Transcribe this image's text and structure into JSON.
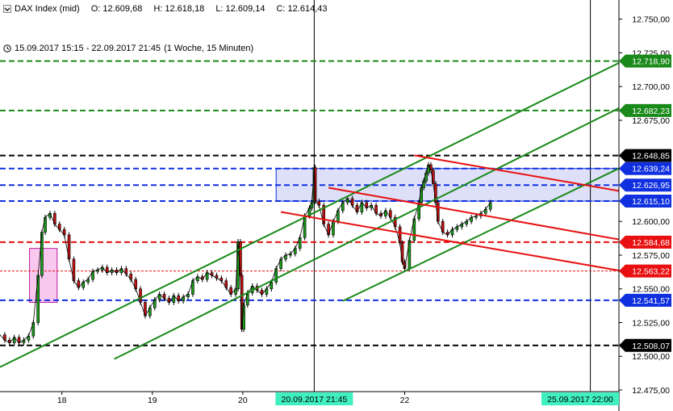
{
  "header": {
    "instrument": "DAX Index (mid)",
    "open": "O: 12.609,68",
    "high": "H: 12.618,18",
    "low": "L: 12.609,14",
    "close": "C: 12.614,43",
    "range": "15.09.2017 15:15 - 22.09.2017 21:45",
    "period": "(1 Woche, 15 Minuten)"
  },
  "colors": {
    "green": "#1a8a1a",
    "red": "#e81010",
    "blue": "#1030e0",
    "black": "#000000",
    "zone_fill": "#dde0f8",
    "pink_fill": "#f8c8ee",
    "date_tag": "#40f0c0"
  },
  "chart_data": {
    "type": "candlestick",
    "y_axis": {
      "range": [
        12475,
        12760
      ],
      "ticks": [
        "12.750,00",
        "12.725,00",
        "12.700,00",
        "12.675,00",
        "12.600,00",
        "12.575,00",
        "12.550,00",
        "12.525,00",
        "12.500,00",
        "12.475,00"
      ],
      "tick_values": [
        12750,
        12725,
        12700,
        12675,
        12600,
        12575,
        12550,
        12525,
        12500,
        12475
      ]
    },
    "x_axis": {
      "labels": [
        "18",
        "19",
        "20",
        "22"
      ],
      "label_positions": [
        1.3,
        3.2,
        5.1,
        8.5
      ],
      "date_tags": [
        {
          "label": "20.09.2017 21:45",
          "pos": 6.6
        },
        {
          "label": "25.09.2017 22:00",
          "pos": 12.4
        }
      ],
      "range": [
        0,
        13
      ]
    },
    "vertical_lines": [
      6.6,
      12.4
    ],
    "horizontal_levels": [
      {
        "value": 12718.9,
        "label": "12.718,90",
        "color": "green",
        "dashed": true
      },
      {
        "value": 12682.23,
        "label": "12.682,23",
        "color": "green",
        "dashed": true
      },
      {
        "value": 12648.85,
        "label": "12.648,85",
        "color": "black",
        "dashed": true
      },
      {
        "value": 12639.24,
        "label": "12.639,24",
        "color": "blue",
        "dashed": true
      },
      {
        "value": 12626.95,
        "label": "12.626,95",
        "color": "blue",
        "dashed": true
      },
      {
        "value": 12615.1,
        "label": "12.615,10",
        "color": "blue",
        "dashed": true
      },
      {
        "value": 12584.68,
        "label": "12.584,68",
        "color": "red",
        "dashed": true
      },
      {
        "value": 12563.22,
        "label": "12.563,22",
        "color": "red",
        "dashed": true,
        "thin": true
      },
      {
        "value": 12541.57,
        "label": "12.541,57",
        "color": "blue",
        "dashed": true
      },
      {
        "value": 12508.07,
        "label": "12.508,07",
        "color": "black",
        "dashed": true
      }
    ],
    "trend_lines": [
      {
        "color": "green",
        "from": [
          0.0,
          12492
        ],
        "to": [
          13.2,
          12721
        ]
      },
      {
        "color": "green",
        "from": [
          2.4,
          12498
        ],
        "to": [
          13.0,
          12684
        ]
      },
      {
        "color": "green",
        "from": [
          7.2,
          12541
        ],
        "to": [
          13.1,
          12641
        ]
      },
      {
        "color": "red",
        "from": [
          8.7,
          12649
        ],
        "to": [
          13.1,
          12622
        ]
      },
      {
        "color": "red",
        "from": [
          6.9,
          12625
        ],
        "to": [
          13.1,
          12586
        ]
      },
      {
        "color": "red",
        "from": [
          5.9,
          12607
        ],
        "to": [
          13.1,
          12563
        ]
      }
    ],
    "zones": [
      {
        "x": [
          5.8,
          13.05
        ],
        "y": [
          12615.1,
          12639.24
        ],
        "fill": "zone_fill",
        "stroke": "blue"
      },
      {
        "x": [
          0.62,
          1.2
        ],
        "y": [
          12540,
          12580
        ],
        "fill": "pink_fill",
        "stroke": "#c020a0"
      }
    ],
    "price_path": [
      [
        0.0,
        12516
      ],
      [
        0.1,
        12512
      ],
      [
        0.2,
        12510
      ],
      [
        0.3,
        12514
      ],
      [
        0.4,
        12510
      ],
      [
        0.5,
        12512
      ],
      [
        0.6,
        12515
      ],
      [
        0.7,
        12525
      ],
      [
        0.8,
        12560
      ],
      [
        0.88,
        12592
      ],
      [
        0.95,
        12603
      ],
      [
        1.05,
        12606
      ],
      [
        1.15,
        12598
      ],
      [
        1.25,
        12594
      ],
      [
        1.35,
        12590
      ],
      [
        1.45,
        12572
      ],
      [
        1.55,
        12556
      ],
      [
        1.65,
        12551
      ],
      [
        1.75,
        12555
      ],
      [
        1.85,
        12557
      ],
      [
        1.95,
        12563
      ],
      [
        2.05,
        12564
      ],
      [
        2.15,
        12566
      ],
      [
        2.25,
        12562
      ],
      [
        2.35,
        12564
      ],
      [
        2.45,
        12562
      ],
      [
        2.55,
        12565
      ],
      [
        2.65,
        12561
      ],
      [
        2.75,
        12557
      ],
      [
        2.85,
        12550
      ],
      [
        2.95,
        12540
      ],
      [
        3.05,
        12530
      ],
      [
        3.15,
        12536
      ],
      [
        3.25,
        12542
      ],
      [
        3.35,
        12546
      ],
      [
        3.45,
        12543
      ],
      [
        3.55,
        12540
      ],
      [
        3.65,
        12545
      ],
      [
        3.75,
        12541
      ],
      [
        3.85,
        12544
      ],
      [
        3.95,
        12546
      ],
      [
        4.05,
        12556
      ],
      [
        4.15,
        12559
      ],
      [
        4.25,
        12557
      ],
      [
        4.35,
        12562
      ],
      [
        4.45,
        12560
      ],
      [
        4.55,
        12558
      ],
      [
        4.65,
        12556
      ],
      [
        4.75,
        12551
      ],
      [
        4.85,
        12546
      ],
      [
        4.95,
        12550
      ],
      [
        5.0,
        12585
      ],
      [
        5.05,
        12560
      ],
      [
        5.08,
        12520
      ],
      [
        5.12,
        12538
      ],
      [
        5.2,
        12547
      ],
      [
        5.3,
        12552
      ],
      [
        5.4,
        12549
      ],
      [
        5.5,
        12546
      ],
      [
        5.6,
        12550
      ],
      [
        5.7,
        12555
      ],
      [
        5.8,
        12565
      ],
      [
        5.9,
        12572
      ],
      [
        6.0,
        12575
      ],
      [
        6.1,
        12576
      ],
      [
        6.2,
        12580
      ],
      [
        6.3,
        12588
      ],
      [
        6.4,
        12604
      ],
      [
        6.5,
        12610
      ],
      [
        6.55,
        12614
      ],
      [
        6.6,
        12640
      ],
      [
        6.62,
        12615
      ],
      [
        6.7,
        12612
      ],
      [
        6.8,
        12598
      ],
      [
        6.9,
        12590
      ],
      [
        7.0,
        12600
      ],
      [
        7.1,
        12608
      ],
      [
        7.2,
        12614
      ],
      [
        7.3,
        12617
      ],
      [
        7.4,
        12612
      ],
      [
        7.5,
        12607
      ],
      [
        7.6,
        12614
      ],
      [
        7.7,
        12610
      ],
      [
        7.8,
        12612
      ],
      [
        7.9,
        12606
      ],
      [
        8.0,
        12604
      ],
      [
        8.1,
        12608
      ],
      [
        8.2,
        12603
      ],
      [
        8.3,
        12596
      ],
      [
        8.4,
        12584
      ],
      [
        8.45,
        12570
      ],
      [
        8.5,
        12565
      ],
      [
        8.6,
        12586
      ],
      [
        8.7,
        12602
      ],
      [
        8.8,
        12614
      ],
      [
        8.85,
        12625
      ],
      [
        8.9,
        12630
      ],
      [
        8.95,
        12636
      ],
      [
        9.0,
        12642
      ],
      [
        9.05,
        12638
      ],
      [
        9.1,
        12628
      ],
      [
        9.15,
        12614
      ],
      [
        9.2,
        12600
      ],
      [
        9.3,
        12592
      ],
      [
        9.4,
        12590
      ],
      [
        9.5,
        12594
      ],
      [
        9.6,
        12596
      ],
      [
        9.7,
        12598
      ],
      [
        9.8,
        12600
      ],
      [
        9.9,
        12603
      ],
      [
        10.0,
        12604
      ],
      [
        10.1,
        12606
      ],
      [
        10.2,
        12609
      ],
      [
        10.3,
        12614
      ]
    ]
  }
}
